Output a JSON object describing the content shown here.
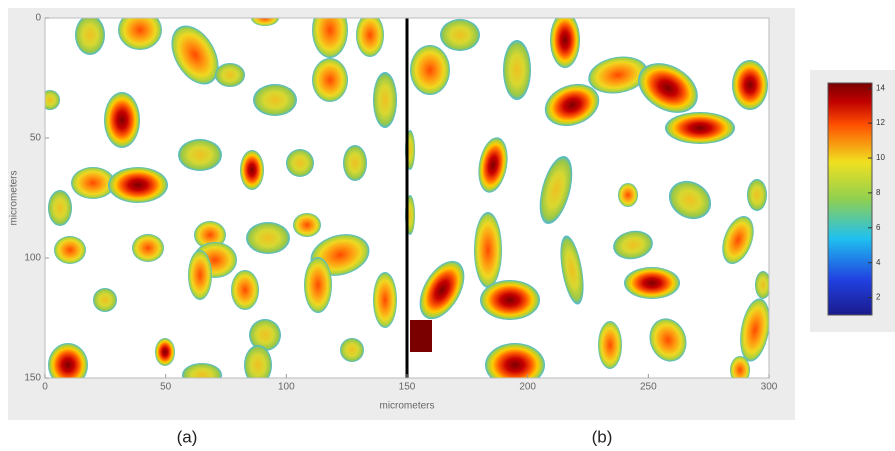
{
  "chart_data": {
    "type": "heatmap",
    "xlabel": "micrometers",
    "ylabel": "micrometers",
    "xlim": [
      0,
      300
    ],
    "ylim": [
      0,
      150
    ],
    "xticks": [
      0,
      50,
      100,
      150,
      200,
      250,
      300
    ],
    "yticks": [
      0,
      50,
      100,
      150
    ],
    "panels": [
      "(a)",
      "(b)"
    ],
    "colorbar": {
      "lim": [
        1,
        14.3
      ],
      "ticks": [
        2,
        4,
        6,
        8,
        10,
        12,
        14
      ]
    }
  }
}
